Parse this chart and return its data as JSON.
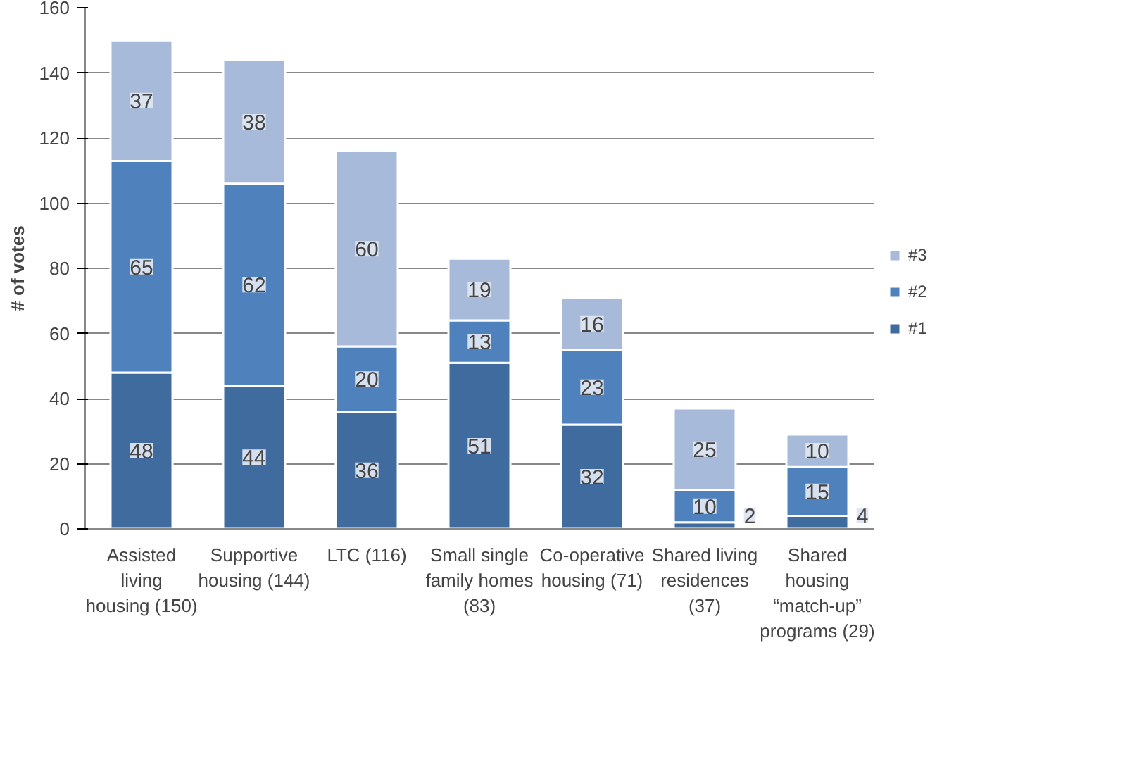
{
  "chart_data": {
    "type": "bar",
    "stacked": true,
    "ylabel": "# of votes",
    "categories": [
      "Assisted living housing (150)",
      "Supportive housing (144)",
      "LTC (116)",
      "Small single family homes (83)",
      "Co-operative housing (71)",
      "Shared living residences (37)",
      "Shared housing “match-up” programs (29)"
    ],
    "series": [
      {
        "name": "#1",
        "color": "#3f6b9f",
        "values": [
          48,
          44,
          36,
          51,
          32,
          2,
          4
        ]
      },
      {
        "name": "#2",
        "color": "#4f81bd",
        "values": [
          65,
          62,
          20,
          13,
          23,
          10,
          15
        ]
      },
      {
        "name": "#3",
        "color": "#a8bad9",
        "values": [
          37,
          38,
          60,
          19,
          16,
          25,
          10
        ]
      }
    ],
    "ylim": [
      0,
      160
    ],
    "yticks": [
      0,
      20,
      40,
      60,
      80,
      100,
      120,
      140,
      160
    ],
    "grid": "y",
    "legend": "right",
    "data_labels": true
  }
}
